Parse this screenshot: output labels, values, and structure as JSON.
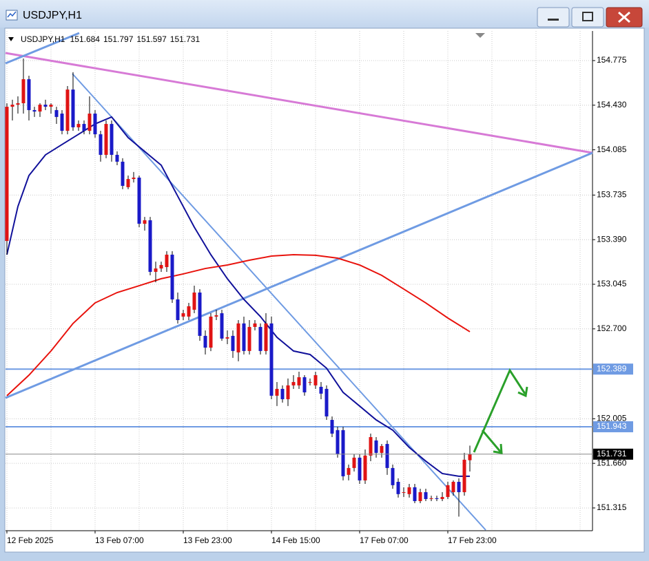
{
  "window_title": "USDJPY,H1",
  "chart_data": {
    "type": "candlestick",
    "title": "USDJPY,H1",
    "categories": [
      "12 Feb 2025",
      null,
      null,
      null,
      null,
      null,
      null,
      null,
      null,
      null,
      null,
      null,
      null,
      null,
      null,
      null,
      "13 Feb 07:00",
      null,
      null,
      null,
      null,
      null,
      null,
      null,
      null,
      null,
      null,
      null,
      null,
      null,
      null,
      null,
      "13 Feb 23:00",
      null,
      null,
      null,
      null,
      null,
      null,
      null,
      null,
      null,
      null,
      null,
      null,
      null,
      null,
      null,
      "14 Feb 15:00",
      null,
      null,
      null,
      null,
      null,
      null,
      null,
      null,
      null,
      null,
      null,
      null,
      null,
      null,
      null,
      "17 Feb 07:00",
      null,
      null,
      null,
      null,
      null,
      null,
      null,
      null,
      null,
      null,
      null,
      null,
      null,
      null,
      null,
      "17 Feb 23:00",
      null,
      null,
      null,
      null
    ],
    "ohlc": [
      [
        153.38,
        154.445,
        153.274,
        154.418
      ],
      [
        154.418,
        154.472,
        154.312,
        154.434
      ],
      [
        154.434,
        154.498,
        154.365,
        154.445
      ],
      [
        154.445,
        154.791,
        154.365,
        154.631
      ],
      [
        154.631,
        154.658,
        154.312,
        154.392
      ],
      [
        154.392,
        154.418,
        154.339,
        154.381
      ],
      [
        154.381,
        154.445,
        154.339,
        154.434
      ],
      [
        154.434,
        154.472,
        154.392,
        154.418
      ],
      [
        154.418,
        154.445,
        154.365,
        154.434
      ],
      [
        154.392,
        154.418,
        154.285,
        154.339
      ],
      [
        154.365,
        154.392,
        154.205,
        154.232
      ],
      [
        154.232,
        154.578,
        154.205,
        154.551
      ],
      [
        154.551,
        154.685,
        154.232,
        154.259
      ],
      [
        154.259,
        154.312,
        154.232,
        154.285
      ],
      [
        154.285,
        154.312,
        154.205,
        154.232
      ],
      [
        154.232,
        154.498,
        154.205,
        154.365
      ],
      [
        154.365,
        154.392,
        154.178,
        154.205
      ],
      [
        154.205,
        154.232,
        153.993,
        154.046
      ],
      [
        154.046,
        154.312,
        154.02,
        154.285
      ],
      [
        154.285,
        154.312,
        153.993,
        154.046
      ],
      [
        154.046,
        154.073,
        153.966,
        153.993
      ],
      [
        153.993,
        154.02,
        153.78,
        153.806
      ],
      [
        153.796,
        153.886,
        153.78,
        153.859
      ],
      [
        153.859,
        153.913,
        153.832,
        153.87
      ],
      [
        153.87,
        153.886,
        153.487,
        153.513
      ],
      [
        153.513,
        153.566,
        153.46,
        153.54
      ],
      [
        153.54,
        153.566,
        153.114,
        153.141
      ],
      [
        153.141,
        153.22,
        153.06,
        153.167
      ],
      [
        153.167,
        153.22,
        153.141,
        153.194
      ],
      [
        153.178,
        153.301,
        153.141,
        153.274
      ],
      [
        153.274,
        153.301,
        152.901,
        152.928
      ],
      [
        152.928,
        152.981,
        152.741,
        152.768
      ],
      [
        152.795,
        152.848,
        152.768,
        152.821
      ],
      [
        152.795,
        152.901,
        152.768,
        152.875
      ],
      [
        152.848,
        153.034,
        152.821,
        152.981
      ],
      [
        152.981,
        153.007,
        152.608,
        152.646
      ],
      [
        152.646,
        152.688,
        152.502,
        152.555
      ],
      [
        152.555,
        152.821,
        152.528,
        152.795
      ],
      [
        152.795,
        152.848,
        152.768,
        152.805
      ],
      [
        152.821,
        152.848,
        152.608,
        152.625
      ],
      [
        152.625,
        152.688,
        152.582,
        152.635
      ],
      [
        152.646,
        152.688,
        152.476,
        152.529
      ],
      [
        152.518,
        152.768,
        152.449,
        152.742
      ],
      [
        152.742,
        152.795,
        152.502,
        152.529
      ],
      [
        152.529,
        152.768,
        152.502,
        152.715
      ],
      [
        152.715,
        152.768,
        152.688,
        152.742
      ],
      [
        152.715,
        152.742,
        152.502,
        152.529
      ],
      [
        152.529,
        152.821,
        152.502,
        152.742
      ],
      [
        152.742,
        152.795,
        152.156,
        152.183
      ],
      [
        152.183,
        152.289,
        152.103,
        152.236
      ],
      [
        152.236,
        152.263,
        152.13,
        152.156
      ],
      [
        152.156,
        152.316,
        152.103,
        152.263
      ],
      [
        152.263,
        152.342,
        152.236,
        152.289
      ],
      [
        152.263,
        152.369,
        152.236,
        152.326
      ],
      [
        152.326,
        152.342,
        152.183,
        152.209
      ],
      [
        152.289,
        152.316,
        152.263,
        152.289
      ],
      [
        152.263,
        152.369,
        152.236,
        152.342
      ],
      [
        152.252,
        152.289,
        152.156,
        152.199
      ],
      [
        152.236,
        152.263,
        151.996,
        152.023
      ],
      [
        151.996,
        152.023,
        151.863,
        151.89
      ],
      [
        151.917,
        151.943,
        151.704,
        151.73
      ],
      [
        151.917,
        151.943,
        151.528,
        151.56
      ],
      [
        151.571,
        151.651,
        151.528,
        151.624
      ],
      [
        151.624,
        151.73,
        151.597,
        151.704
      ],
      [
        151.704,
        151.73,
        151.501,
        151.528
      ],
      [
        151.528,
        151.767,
        151.501,
        151.72
      ],
      [
        151.72,
        151.89,
        151.677,
        151.863
      ],
      [
        151.837,
        151.863,
        151.704,
        151.741
      ],
      [
        151.741,
        151.81,
        151.704,
        151.794
      ],
      [
        151.81,
        151.837,
        151.571,
        151.624
      ],
      [
        151.624,
        151.651,
        151.464,
        151.491
      ],
      [
        151.517,
        151.544,
        151.395,
        151.422
      ],
      [
        151.437,
        151.475,
        151.4,
        151.437
      ],
      [
        151.422,
        151.501,
        151.395,
        151.475
      ],
      [
        151.475,
        151.501,
        151.352,
        151.368
      ],
      [
        151.368,
        151.464,
        151.352,
        151.437
      ],
      [
        151.437,
        151.464,
        151.368,
        151.384
      ],
      [
        151.384,
        151.41,
        151.368,
        151.39
      ],
      [
        151.39,
        151.41,
        151.368,
        151.384
      ],
      [
        151.384,
        151.437,
        151.368,
        151.4
      ],
      [
        151.4,
        151.517,
        151.384,
        151.491
      ],
      [
        151.437,
        151.528,
        151.41,
        151.517
      ],
      [
        151.517,
        151.544,
        151.248,
        151.437
      ],
      [
        151.437,
        151.741,
        151.41,
        151.688
      ],
      [
        151.684,
        151.797,
        151.597,
        151.731
      ]
    ],
    "bull_color": "#e01414",
    "bear_color": "#1a1ac8",
    "lines": [
      {
        "color": "#10109a",
        "x": [
          0,
          2,
          4,
          7,
          10,
          13,
          16,
          19,
          22,
          25,
          28,
          31,
          34,
          37,
          40,
          43,
          46,
          49,
          52,
          55,
          58,
          61,
          64,
          67,
          70,
          73,
          76,
          79,
          82,
          84
        ],
        "values": [
          153.274,
          153.647,
          153.886,
          154.046,
          154.126,
          154.205,
          154.285,
          154.339,
          154.179,
          154.072,
          153.966,
          153.726,
          153.487,
          153.274,
          153.088,
          152.928,
          152.795,
          152.635,
          152.529,
          152.502,
          152.396,
          152.209,
          152.103,
          151.996,
          151.917,
          151.783,
          151.677,
          151.581,
          151.56,
          151.56
        ]
      },
      {
        "color": "#e8120c",
        "x": [
          0,
          4,
          8,
          12,
          16,
          20,
          24,
          28,
          32,
          36,
          40,
          44,
          48,
          52,
          56,
          60,
          64,
          68,
          72,
          76,
          80,
          84
        ],
        "values": [
          152.183,
          152.342,
          152.529,
          152.742,
          152.901,
          152.981,
          153.034,
          153.088,
          153.125,
          153.167,
          153.194,
          153.231,
          153.263,
          153.274,
          153.269,
          153.247,
          153.194,
          153.114,
          153.008,
          152.901,
          152.784,
          152.678
        ]
      }
    ],
    "hlines": [
      {
        "value": 152.389,
        "color": "#6f9be3"
      },
      {
        "value": 151.943,
        "color": "#6f9be3"
      }
    ],
    "ylim": [
      151.139,
      155.004
    ],
    "yticks": [
      154.775,
      {
        "value": 154.43,
        "label": "154.430"
      },
      154.085,
      153.735,
      {
        "value": 153.39,
        "label": "153.390"
      },
      153.045,
      {
        "value": 152.7,
        "label": "152.700"
      },
      152.005,
      {
        "value": 151.66,
        "label": "151.660"
      },
      151.315
    ],
    "grid": true
  }
}
